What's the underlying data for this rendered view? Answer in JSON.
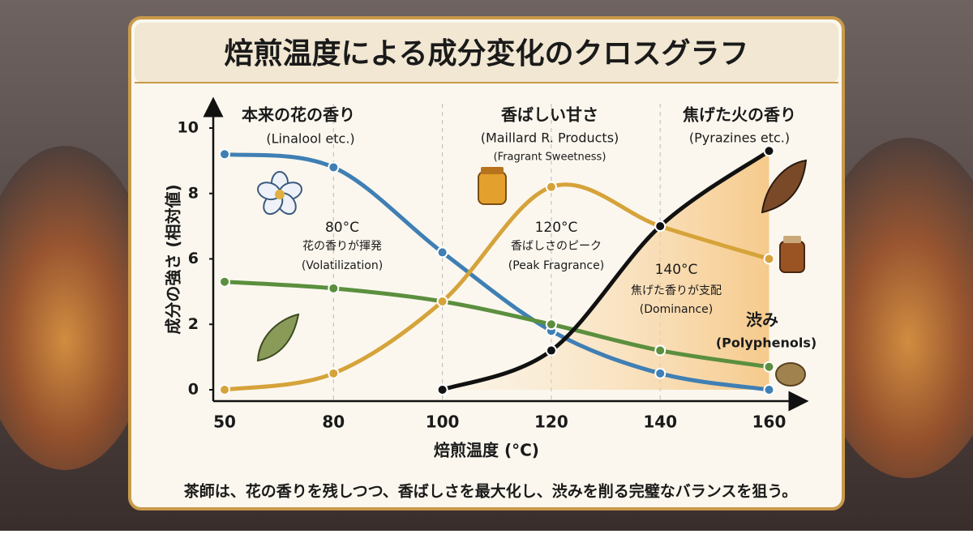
{
  "chart_data": {
    "type": "line",
    "title": "焙煎温度による成分変化のクロスグラフ",
    "x_label": "焙煎温度 (°C)",
    "y_label": "成分の強さ (相対値)",
    "categories": [
      "50",
      "80",
      "100",
      "120",
      "140",
      "160"
    ],
    "yticks": [
      0,
      2,
      6,
      8,
      10
    ],
    "ylim": [
      0,
      10
    ],
    "series": [
      {
        "color": "#3f7fb4",
        "values": [
          9.2,
          8.8,
          6.2,
          1.8,
          0.5,
          0
        ]
      },
      {
        "color": "#5b8f3e",
        "values": [
          4.6,
          4.2,
          3.4,
          2.0,
          1.2,
          0.7
        ]
      },
      {
        "color": "#d6a33a",
        "values": [
          0,
          0.5,
          3.4,
          8.2,
          7.0,
          6.0
        ]
      },
      {
        "color": "#111111",
        "values": [
          null,
          null,
          0,
          1.2,
          7.0,
          9.3
        ]
      }
    ],
    "annotations": [
      "本来の花の香り",
      "(Linalool etc.)",
      "香ばしい甘さ",
      "(Maillard R. Products)",
      "(Fragrant Sweetness)",
      "焦げた火の香り",
      "(Pyrazines etc.)",
      "80°C",
      "花の香りが揮発",
      "(Volatilization)",
      "120°C",
      "香ばしさのピーク",
      "(Peak Fragrance)",
      "140°C",
      "焦げた香りが支配",
      "(Dominance)",
      "渋み",
      "(Polyphenols)"
    ],
    "footer": "茶師は、花の香りを残しつつ、香ばしさを最大化し、渋みを削る完璧なバランスを狙う。"
  }
}
